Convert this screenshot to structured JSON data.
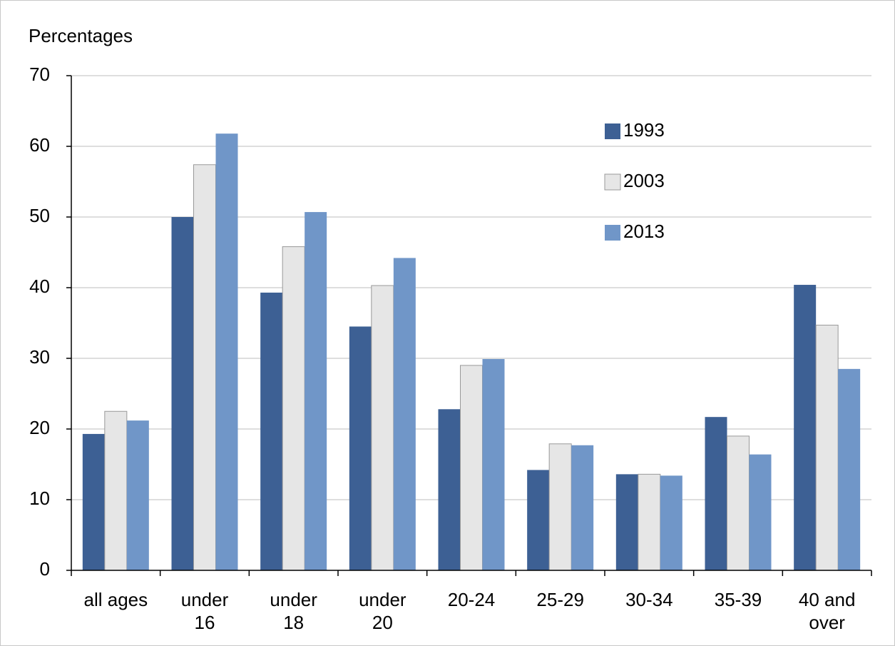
{
  "chart_data": {
    "type": "bar",
    "y_label": "Percentages",
    "categories": [
      "all ages",
      "under\n16",
      "under\n18",
      "under\n20",
      "20-24",
      "25-29",
      "30-34",
      "35-39",
      "40 and\nover"
    ],
    "series": [
      {
        "name": "1993",
        "color": "#3d6094",
        "values": [
          19.3,
          50,
          39.3,
          34.5,
          22.8,
          14.2,
          13.6,
          21.7,
          40.4
        ]
      },
      {
        "name": "2003",
        "color": "#e6e6e6",
        "values": [
          22.5,
          57.4,
          45.8,
          40.3,
          29,
          17.9,
          13.6,
          19,
          34.7
        ]
      },
      {
        "name": "2013",
        "color": "#7096c8",
        "values": [
          21.2,
          61.8,
          50.7,
          44.2,
          29.9,
          17.7,
          13.4,
          16.4,
          28.5
        ]
      }
    ],
    "ylim": [
      0,
      70
    ],
    "yticks": [
      0,
      10,
      20,
      30,
      40,
      50,
      60,
      70
    ],
    "grid": true,
    "legend": "top-right"
  }
}
